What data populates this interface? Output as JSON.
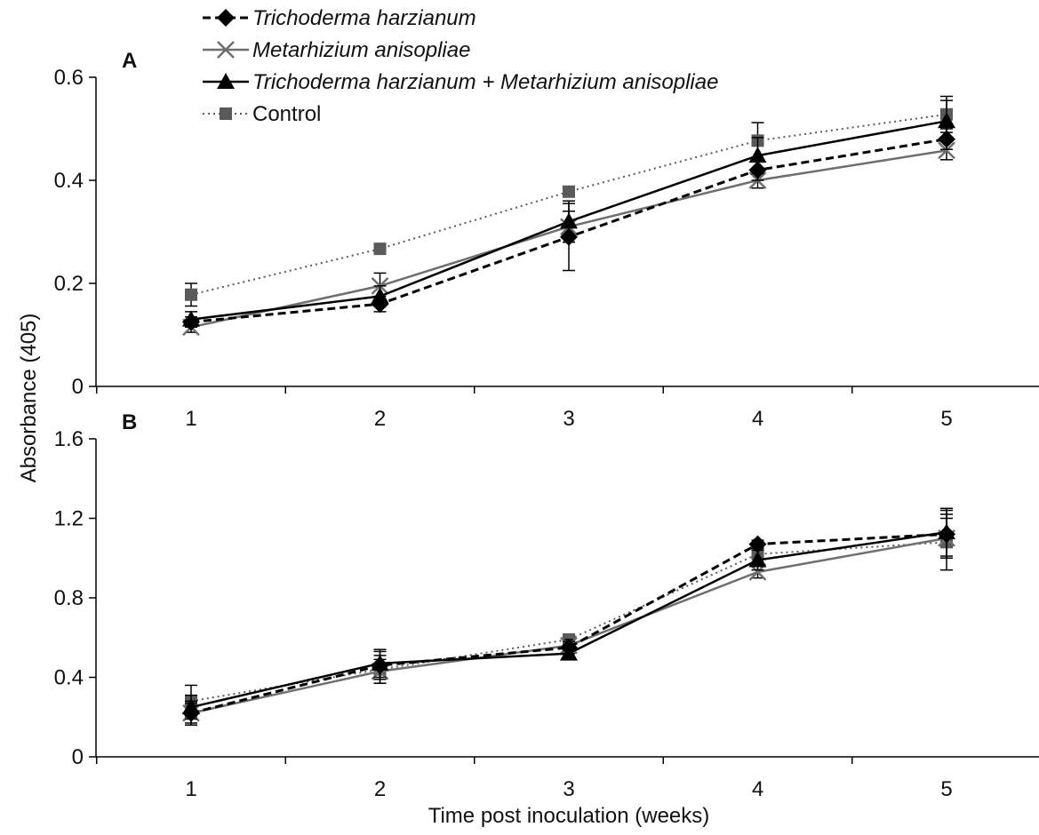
{
  "chart_data": {
    "type": "line",
    "ylabel": "Absorbance (405)",
    "xlabel": "Time post inoculation (weeks)",
    "x": [
      1,
      2,
      3,
      4,
      5
    ],
    "x_ticks": [
      "1",
      "2",
      "3",
      "4",
      "5"
    ],
    "legend": {
      "placement": "top",
      "entries": [
        {
          "series": 0,
          "label": "Trichoderma harzianum",
          "italic": true
        },
        {
          "series": 1,
          "label": "Metarhizium anisopliae",
          "italic": true
        },
        {
          "series": 2,
          "label": "Trichoderma harzianum + Metarhizium anisopliae",
          "italic": true
        },
        {
          "series": 3,
          "label": "Control",
          "italic": false
        }
      ]
    },
    "series_styles": [
      {
        "color": "#000000",
        "dash": "9,5",
        "marker": "diamond",
        "width": 3
      },
      {
        "color": "#6e6e6e",
        "dash": "",
        "marker": "x",
        "width": 2.5
      },
      {
        "color": "#000000",
        "dash": "",
        "marker": "triangle",
        "width": 2.5
      },
      {
        "color": "#5a5a5a",
        "dash": "2,4",
        "marker": "square",
        "width": 2
      }
    ],
    "panels": [
      {
        "label": "A",
        "ylim": [
          0,
          0.6
        ],
        "yticks": [
          "0",
          "0.2",
          "0.4",
          "0.6"
        ],
        "ytick_values": [
          0,
          0.2,
          0.4,
          0.6
        ],
        "grid": false,
        "series": [
          {
            "name": "Trichoderma harzianum",
            "values": [
              0.125,
              0.16,
              0.29,
              0.42,
              0.48
            ],
            "errors": [
              0.01,
              0.015,
              0.065,
              0.02,
              0.02
            ]
          },
          {
            "name": "Metarhizium anisopliae",
            "values": [
              0.115,
              0.195,
              0.31,
              0.4,
              0.458
            ],
            "errors": [
              0.01,
              0.025,
              0.03,
              0.015,
              0.018
            ]
          },
          {
            "name": "Trichoderma harzianum + Metarhizium anisopliae",
            "values": [
              0.13,
              0.175,
              0.32,
              0.448,
              0.515
            ],
            "errors": [
              0.015,
              0.02,
              0.04,
              0.035,
              0.04
            ]
          },
          {
            "name": "Control",
            "values": [
              0.178,
              0.267,
              0.378,
              0.477,
              0.528
            ],
            "errors": [
              0.022,
              0.005,
              0.005,
              0.035,
              0.035
            ]
          }
        ]
      },
      {
        "label": "B",
        "ylim": [
          0,
          1.6
        ],
        "yticks": [
          "0",
          "0.4",
          "0.8",
          "1.2",
          "1.6"
        ],
        "ytick_values": [
          0,
          0.4,
          0.8,
          1.2,
          1.6
        ],
        "grid": false,
        "series": [
          {
            "name": "Trichoderma harzianum",
            "values": [
              0.22,
              0.46,
              0.55,
              1.07,
              1.12
            ],
            "errors": [
              0.06,
              0.07,
              0.03,
              0.02,
              0.12
            ]
          },
          {
            "name": "Metarhizium anisopliae",
            "values": [
              0.22,
              0.43,
              0.56,
              0.93,
              1.1
            ],
            "errors": [
              0.05,
              0.06,
              0.03,
              0.03,
              0.1
            ]
          },
          {
            "name": "Trichoderma harzianum + Metarhizium anisopliae",
            "values": [
              0.25,
              0.47,
              0.52,
              0.99,
              1.13
            ],
            "errors": [
              0.06,
              0.07,
              0.03,
              0.05,
              0.12
            ]
          },
          {
            "name": "Control",
            "values": [
              0.28,
              0.44,
              0.59,
              1.02,
              1.08
            ],
            "errors": [
              0.08,
              0.07,
              0.02,
              0.04,
              0.14
            ]
          }
        ]
      }
    ]
  }
}
